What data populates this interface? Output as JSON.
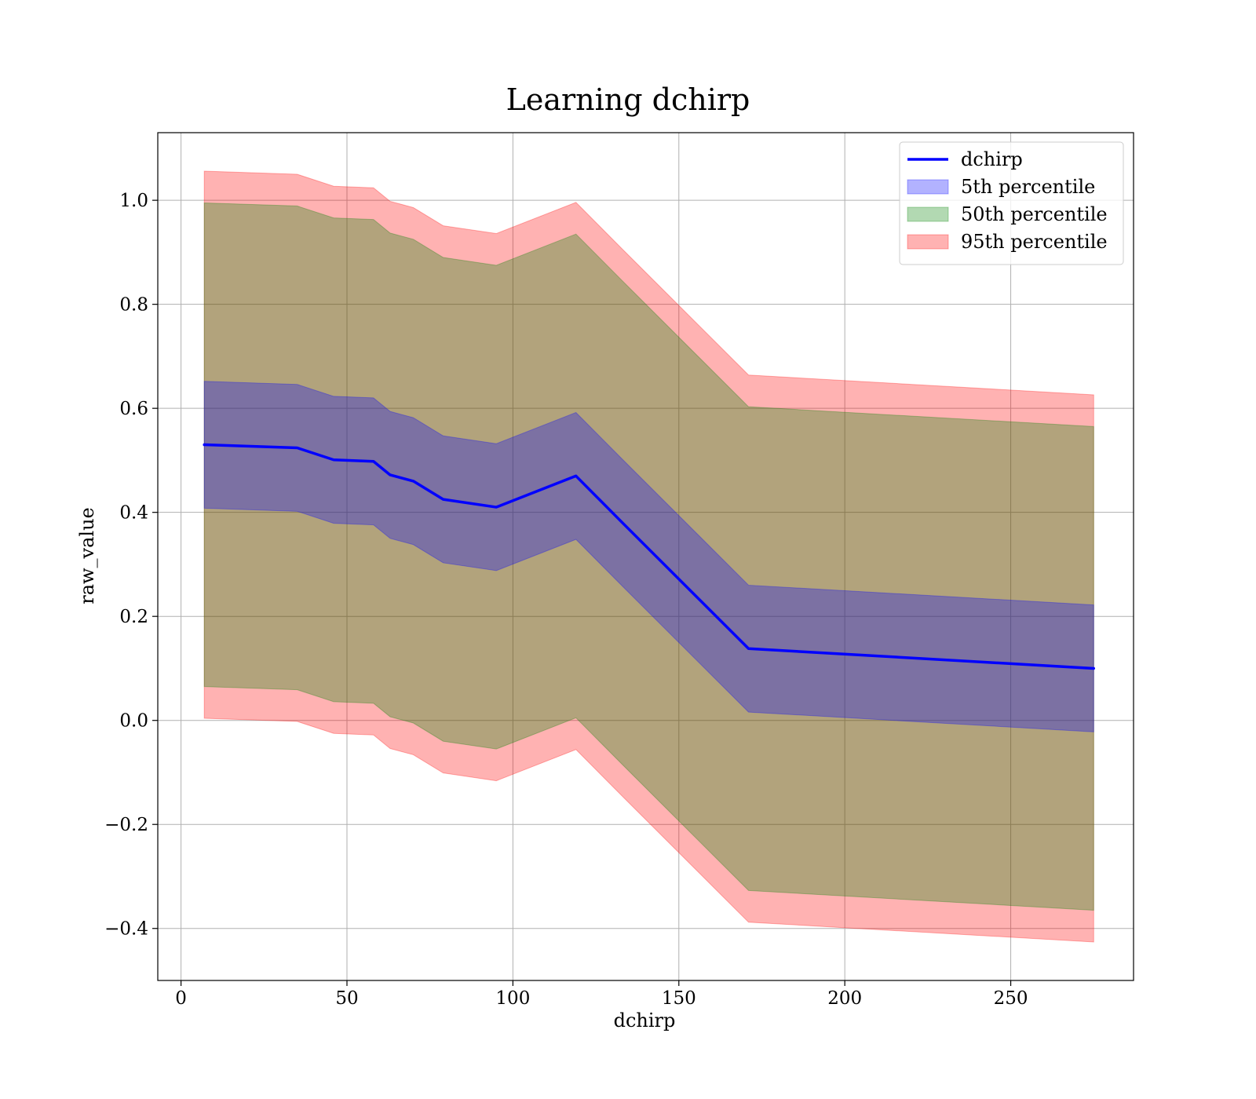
{
  "chart_data": {
    "type": "area",
    "title": "Learning dchirp",
    "xlabel": "dchirp",
    "ylabel": "raw_value",
    "xlim": [
      -7,
      287
    ],
    "ylim": [
      -0.5,
      1.13
    ],
    "grid": true,
    "legend_position": "top-right",
    "x_ticks": [
      0,
      50,
      100,
      150,
      200,
      250
    ],
    "x_tick_labels": [
      "0",
      "50",
      "100",
      "150",
      "200",
      "250"
    ],
    "y_ticks": [
      -0.4,
      -0.2,
      0.0,
      0.2,
      0.4,
      0.6,
      0.8,
      1.0
    ],
    "y_tick_labels": [
      "−0.4",
      "−0.2",
      "0.0",
      "0.2",
      "0.4",
      "0.6",
      "0.8",
      "1.0"
    ],
    "x": [
      7,
      35,
      46,
      58,
      63,
      70,
      79,
      95,
      119,
      133,
      171,
      275
    ],
    "series": [
      {
        "name": "dchirp",
        "kind": "line",
        "color": "#0000ff",
        "values": [
          0.53,
          0.524,
          0.501,
          0.498,
          0.472,
          0.46,
          0.425,
          0.41,
          0.47,
          0.38,
          0.138,
          0.1
        ]
      },
      {
        "name": "5th percentile",
        "kind": "band",
        "color": "#0000ff",
        "opacity": 0.3,
        "lower": [
          0.408,
          0.402,
          0.379,
          0.376,
          0.35,
          0.338,
          0.303,
          0.288,
          0.348,
          0.258,
          0.016,
          -0.022
        ],
        "upper": [
          0.652,
          0.646,
          0.623,
          0.62,
          0.594,
          0.582,
          0.547,
          0.532,
          0.592,
          0.502,
          0.26,
          0.222
        ]
      },
      {
        "name": "50th percentile",
        "kind": "band",
        "color": "#008000",
        "opacity": 0.3,
        "lower": [
          0.065,
          0.059,
          0.036,
          0.033,
          0.007,
          -0.005,
          -0.04,
          -0.055,
          0.005,
          -0.085,
          -0.327,
          -0.365
        ],
        "upper": [
          0.995,
          0.989,
          0.966,
          0.963,
          0.937,
          0.925,
          0.89,
          0.875,
          0.935,
          0.845,
          0.603,
          0.565
        ]
      },
      {
        "name": "95th percentile",
        "kind": "band",
        "color": "#ff0000",
        "opacity": 0.3,
        "lower": [
          0.004,
          -0.002,
          -0.025,
          -0.028,
          -0.054,
          -0.066,
          -0.101,
          -0.116,
          -0.056,
          -0.146,
          -0.388,
          -0.426
        ],
        "upper": [
          1.056,
          1.05,
          1.027,
          1.024,
          0.998,
          0.986,
          0.951,
          0.936,
          0.996,
          0.906,
          0.664,
          0.626
        ]
      }
    ]
  }
}
